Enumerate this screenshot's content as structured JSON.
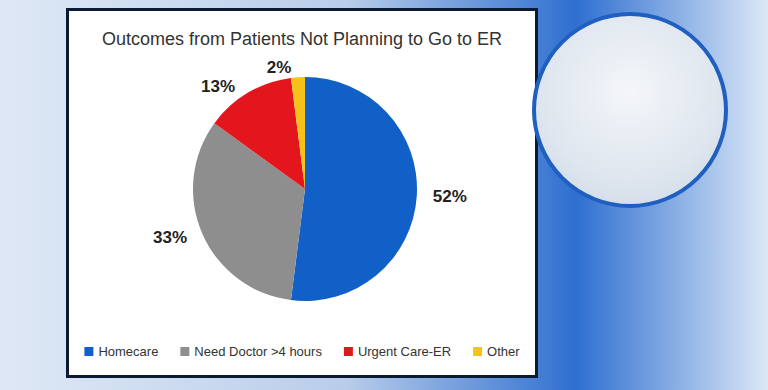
{
  "chart_data": {
    "type": "pie",
    "title": "Outcomes from Patients Not Planning to Go to ER",
    "categories": [
      "Homecare",
      "Need Doctor >4 hours",
      "Urgent Care-ER",
      "Other"
    ],
    "values": [
      52,
      33,
      13,
      2
    ],
    "value_labels": [
      "52%",
      "33%",
      "13%",
      "2%"
    ],
    "colors": [
      "#1060c8",
      "#8e8e8e",
      "#e4161d",
      "#f5c21b"
    ],
    "data_labels": true,
    "legend": "bottom"
  }
}
